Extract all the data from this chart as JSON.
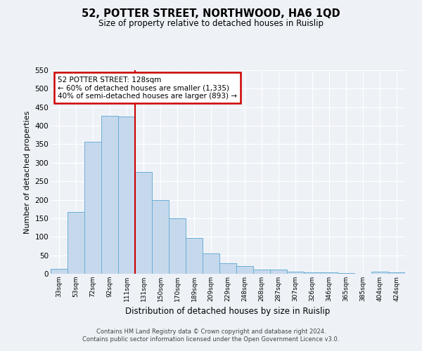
{
  "title": "52, POTTER STREET, NORTHWOOD, HA6 1QD",
  "subtitle": "Size of property relative to detached houses in Ruislip",
  "xlabel": "Distribution of detached houses by size in Ruislip",
  "ylabel": "Number of detached properties",
  "categories": [
    "33sqm",
    "53sqm",
    "72sqm",
    "92sqm",
    "111sqm",
    "131sqm",
    "150sqm",
    "170sqm",
    "189sqm",
    "209sqm",
    "229sqm",
    "248sqm",
    "268sqm",
    "287sqm",
    "307sqm",
    "326sqm",
    "346sqm",
    "365sqm",
    "385sqm",
    "404sqm",
    "424sqm"
  ],
  "values": [
    13,
    167,
    357,
    427,
    424,
    275,
    200,
    149,
    97,
    55,
    28,
    20,
    11,
    12,
    6,
    4,
    4,
    1,
    0,
    5,
    3
  ],
  "bar_color": "#c6d9ec",
  "bar_edge_color": "#6aaed6",
  "vline_index": 5,
  "annotation_title": "52 POTTER STREET: 128sqm",
  "annotation_line1": "← 60% of detached houses are smaller (1,335)",
  "annotation_line2": "40% of semi-detached houses are larger (893) →",
  "annotation_box_color": "#ffffff",
  "annotation_box_edge_color": "#cc0000",
  "vline_color": "#cc0000",
  "ylim": [
    0,
    550
  ],
  "yticks": [
    0,
    50,
    100,
    150,
    200,
    250,
    300,
    350,
    400,
    450,
    500,
    550
  ],
  "footer_line1": "Contains HM Land Registry data © Crown copyright and database right 2024.",
  "footer_line2": "Contains public sector information licensed under the Open Government Licence v3.0.",
  "background_color": "#eef2f7",
  "grid_color": "#ffffff"
}
